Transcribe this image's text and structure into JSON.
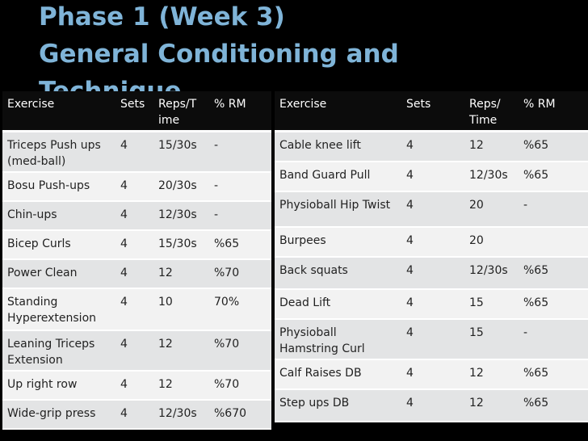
{
  "slide": {
    "title_line1": "Phase 1 (Week 3)",
    "title_line2": "General Conditioning and",
    "title_line3": "Technique"
  },
  "left_table": {
    "headers": [
      "Exercise",
      "Sets",
      "Reps/T ime",
      "% RM"
    ],
    "rows": [
      [
        "Triceps Push ups (med-ball)",
        "4",
        "15/30s",
        "-"
      ],
      [
        "Bosu Push-ups",
        "4",
        "20/30s",
        "-"
      ],
      [
        "Chin-ups",
        "4",
        "12/30s",
        "-"
      ],
      [
        "Bicep Curls",
        "4",
        "15/30s",
        "%65"
      ],
      [
        "Power Clean",
        "4",
        "12",
        "%70"
      ],
      [
        "Standing Hyperextension",
        "4",
        "10",
        "70%"
      ],
      [
        "Leaning Triceps Extension",
        "4",
        "12",
        "%70"
      ],
      [
        "Up right row",
        "4",
        "12",
        "%70"
      ],
      [
        "Wide-grip press",
        "4",
        "12/30s",
        "%670"
      ]
    ]
  },
  "right_table": {
    "headers": [
      "Exercise",
      "Sets",
      "Reps/ Time",
      "% RM"
    ],
    "rows": [
      [
        "Cable knee lift",
        "4",
        "12",
        "%65"
      ],
      [
        "Band Guard Pull",
        "4",
        "12/30s",
        "%65"
      ],
      [
        "Physioball Hip Twist",
        "4",
        "20",
        "-"
      ],
      [
        "Burpees",
        "4",
        "20",
        ""
      ],
      [
        "Back squats",
        "4",
        "12/30s",
        "%65"
      ],
      [
        "Dead Lift",
        "4",
        "15",
        "%65"
      ],
      [
        "Physioball Hamstring Curl",
        "4",
        "15",
        "-"
      ],
      [
        "Calf Raises DB",
        "4",
        "12",
        "%65"
      ],
      [
        "Step ups DB",
        "4",
        "12",
        "%65"
      ]
    ]
  }
}
